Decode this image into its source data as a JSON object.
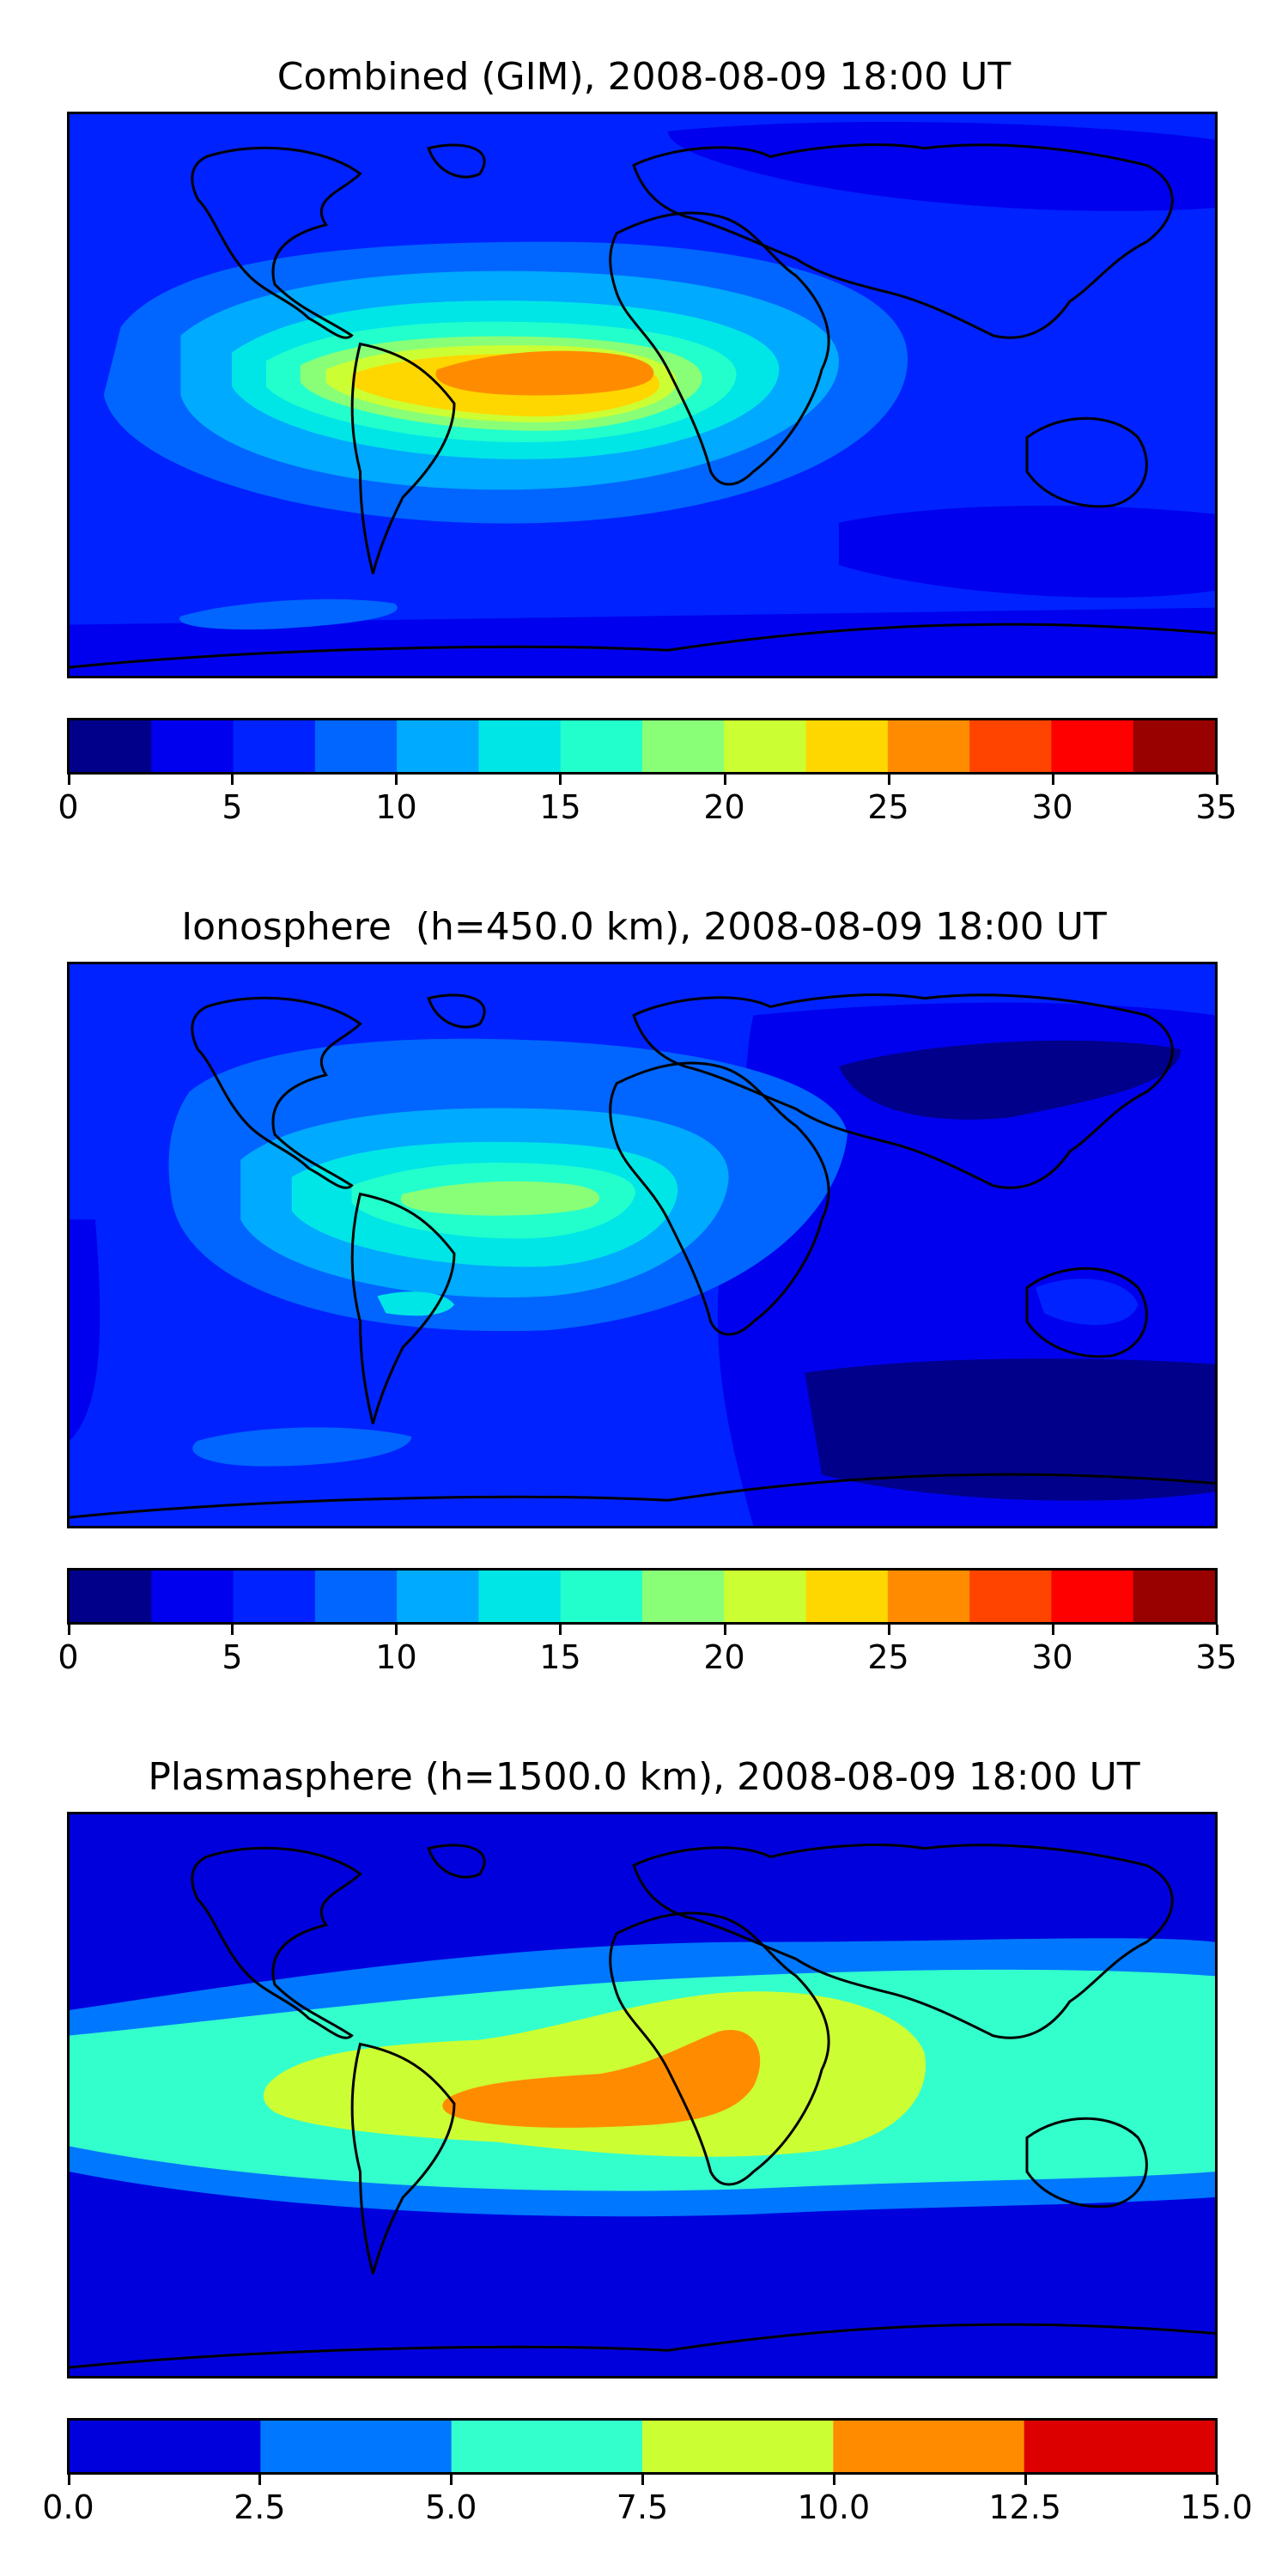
{
  "panels": [
    {
      "title": "Combined (GIM), 2008-08-09 18:00 UT",
      "colorbar": {
        "colors": [
          "#00008b",
          "#0000ee",
          "#0022ff",
          "#0066ff",
          "#00aaff",
          "#00e6e6",
          "#22ffcc",
          "#88ff77",
          "#ccff33",
          "#ffd700",
          "#ff8c00",
          "#ff4400",
          "#ff0000",
          "#990000"
        ],
        "ticks": [
          "0",
          "5",
          "10",
          "15",
          "20",
          "25",
          "30",
          "35"
        ],
        "tick_fractions": [
          0,
          0.142857,
          0.285714,
          0.428571,
          0.571429,
          0.714286,
          0.857143,
          1
        ]
      }
    },
    {
      "title": "Ionosphere  (h=450.0 km), 2008-08-09 18:00 UT",
      "colorbar": {
        "colors": [
          "#00008b",
          "#0000ee",
          "#0022ff",
          "#0066ff",
          "#00aaff",
          "#00e6e6",
          "#22ffcc",
          "#88ff77",
          "#ccff33",
          "#ffd700",
          "#ff8c00",
          "#ff4400",
          "#ff0000",
          "#990000"
        ],
        "ticks": [
          "0",
          "5",
          "10",
          "15",
          "20",
          "25",
          "30",
          "35"
        ],
        "tick_fractions": [
          0,
          0.142857,
          0.285714,
          0.428571,
          0.571429,
          0.714286,
          0.857143,
          1
        ]
      }
    },
    {
      "title": "Plasmasphere (h=1500.0 km), 2008-08-09 18:00 UT",
      "colorbar": {
        "colors": [
          "#0000dd",
          "#0077ff",
          "#33ffcc",
          "#ccff33",
          "#ff8c00",
          "#dd0000"
        ],
        "ticks": [
          "0.0",
          "2.5",
          "5.0",
          "7.5",
          "10.0",
          "12.5",
          "15.0"
        ],
        "tick_fractions": [
          0,
          0.166667,
          0.333333,
          0.5,
          0.666667,
          0.833333,
          1
        ]
      }
    }
  ]
}
